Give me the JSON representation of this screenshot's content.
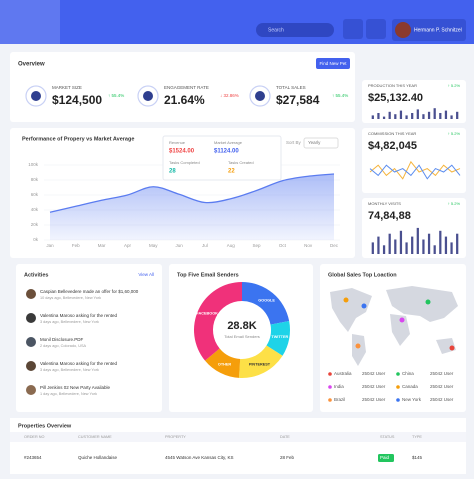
{
  "header": {
    "search": "Search",
    "user": "Hermann P. Schnitzel"
  },
  "overview": {
    "title": "Overview",
    "button": "Find New Pet",
    "stats": [
      {
        "label": "MARKET SIZE",
        "value": "$124,500",
        "change": "↑ 55.4%",
        "color": "#22c55e"
      },
      {
        "label": "ENGAGEMENT RATE",
        "value": "21.64%",
        "change": "↓ 32.86%",
        "color": "#ef4444"
      },
      {
        "label": "TOTAL SALES",
        "value": "$27,584",
        "change": "↑ 55.4%",
        "color": "#22c55e"
      }
    ]
  },
  "side_cards": [
    {
      "label": "PRODUCTION THIS YEAR",
      "value": "$25,132.40",
      "change": "↑ 5.2%",
      "type": "bar",
      "color": "#4a4f8f",
      "ylim": [
        0,
        10
      ],
      "values": [
        3,
        5,
        2,
        6,
        4,
        7,
        3,
        5,
        8,
        4,
        6,
        9,
        5,
        7,
        3,
        6
      ]
    },
    {
      "label": "COMMISSION THIS YEAR",
      "value": "$4,82,045",
      "change": "↑ 5.2%",
      "type": "line",
      "ylim": [
        0,
        10
      ],
      "series": [
        {
          "color": "#f5b43c",
          "values": [
            5,
            7,
            4,
            6,
            3,
            8,
            5,
            6,
            4,
            7,
            5,
            6
          ]
        },
        {
          "color": "#5b8def",
          "values": [
            6,
            4,
            7,
            5,
            6,
            4,
            7,
            3,
            6,
            5,
            7,
            4
          ]
        }
      ]
    },
    {
      "label": "MONTHLY VISITS",
      "value": "74,84,88",
      "change": "↑ 5.2%",
      "type": "bar",
      "color": "#4a4f8f",
      "ylim": [
        0,
        10
      ],
      "values": [
        4,
        6,
        3,
        7,
        5,
        8,
        4,
        6,
        9,
        5,
        7,
        3,
        8,
        6,
        4,
        7
      ]
    }
  ],
  "performance": {
    "title": "Performance of Propery vs Market Average",
    "sort_label": "Sort By",
    "sort_value": "Yearly",
    "tooltip": {
      "revenue_label": "Revenue",
      "revenue": "$1524.00",
      "market_label": "Market Average",
      "market": "$1124.00",
      "completed_label": "Tasks Completed",
      "completed": "28",
      "created_label": "Tasks Created",
      "created": "22"
    },
    "chart_data": {
      "type": "area",
      "color": "#5b7cf0",
      "categories": [
        "Jan",
        "Feb",
        "Mar",
        "Apr",
        "May",
        "Jun",
        "Jul",
        "Aug",
        "Sep",
        "Oct",
        "Nov",
        "Dec"
      ],
      "values": [
        37,
        45,
        53,
        60,
        71,
        61,
        50,
        55,
        66,
        79,
        85,
        88
      ],
      "ylim": [
        0,
        100
      ],
      "yticks": [
        {
          "value": 0,
          "label": "0k"
        },
        {
          "value": 20,
          "label": "20k"
        },
        {
          "value": 40,
          "label": "40k"
        },
        {
          "value": 60,
          "label": "60k"
        },
        {
          "value": 80,
          "label": "80k"
        },
        {
          "value": 100,
          "label": "100k"
        }
      ]
    }
  },
  "activities": {
    "title": "Activities",
    "view_all": "View All",
    "items": [
      {
        "text": "Caspian Bellevedere made an offer for $1,60,000",
        "sub": "10 days ago, Bellevedere, New York"
      },
      {
        "text": "Valentina Maroso asking for the rented",
        "sub": "3 days ago, Bellevedere, New York"
      },
      {
        "text": "Monil Disclosure.PDF",
        "sub": "2 days ago, Colorado, USA"
      },
      {
        "text": "Valentina Maroso asking for the rented",
        "sub": "3 days ago, Bellevedere, New York"
      },
      {
        "text": "Pill Jenkins 02 New Party Available",
        "sub": "1 day ago, Bellevedere, New York"
      }
    ]
  },
  "email": {
    "title": "Top Five Email Senders",
    "total": "28.8K",
    "total_label": "Total Email Senders",
    "chart_data": {
      "type": "donut",
      "segments": [
        {
          "name": "GOOGLE",
          "value": 22,
          "color": "#3b74f0"
        },
        {
          "name": "TWITTER",
          "value": 12,
          "color": "#1ed3e8"
        },
        {
          "name": "PINTEREST",
          "value": 17,
          "color": "#fde047"
        },
        {
          "name": "OTHER",
          "value": 13,
          "color": "#f59e0b"
        },
        {
          "name": "FACEBOOK",
          "value": 36,
          "color": "#f0317a"
        }
      ]
    }
  },
  "map": {
    "title": "Global Sales Top Loaction",
    "legend": [
      {
        "name": "Australia",
        "value": "25042 User",
        "color": "#e8443a"
      },
      {
        "name": "China",
        "value": "25042 User",
        "color": "#22c55e"
      },
      {
        "name": "India",
        "value": "25042 User",
        "color": "#d946ef"
      },
      {
        "name": "Canada",
        "value": "25042 User",
        "color": "#f59e0b"
      },
      {
        "name": "Brazil",
        "value": "25042 User",
        "color": "#fb923c"
      },
      {
        "name": "New York",
        "value": "25042 User",
        "color": "#3b74f0"
      }
    ]
  },
  "table": {
    "title": "Properties Overview",
    "columns": [
      "ORDER NO",
      "CUSTOMER NAME",
      "PROPERTY",
      "DATE",
      "STATUS",
      "TYPE"
    ],
    "rows": [
      [
        "#243654",
        "Quiche Hollandaise",
        "4545 Watson Ave Kansas City, KS",
        "28 Feb",
        "Paid",
        "$145"
      ]
    ]
  }
}
